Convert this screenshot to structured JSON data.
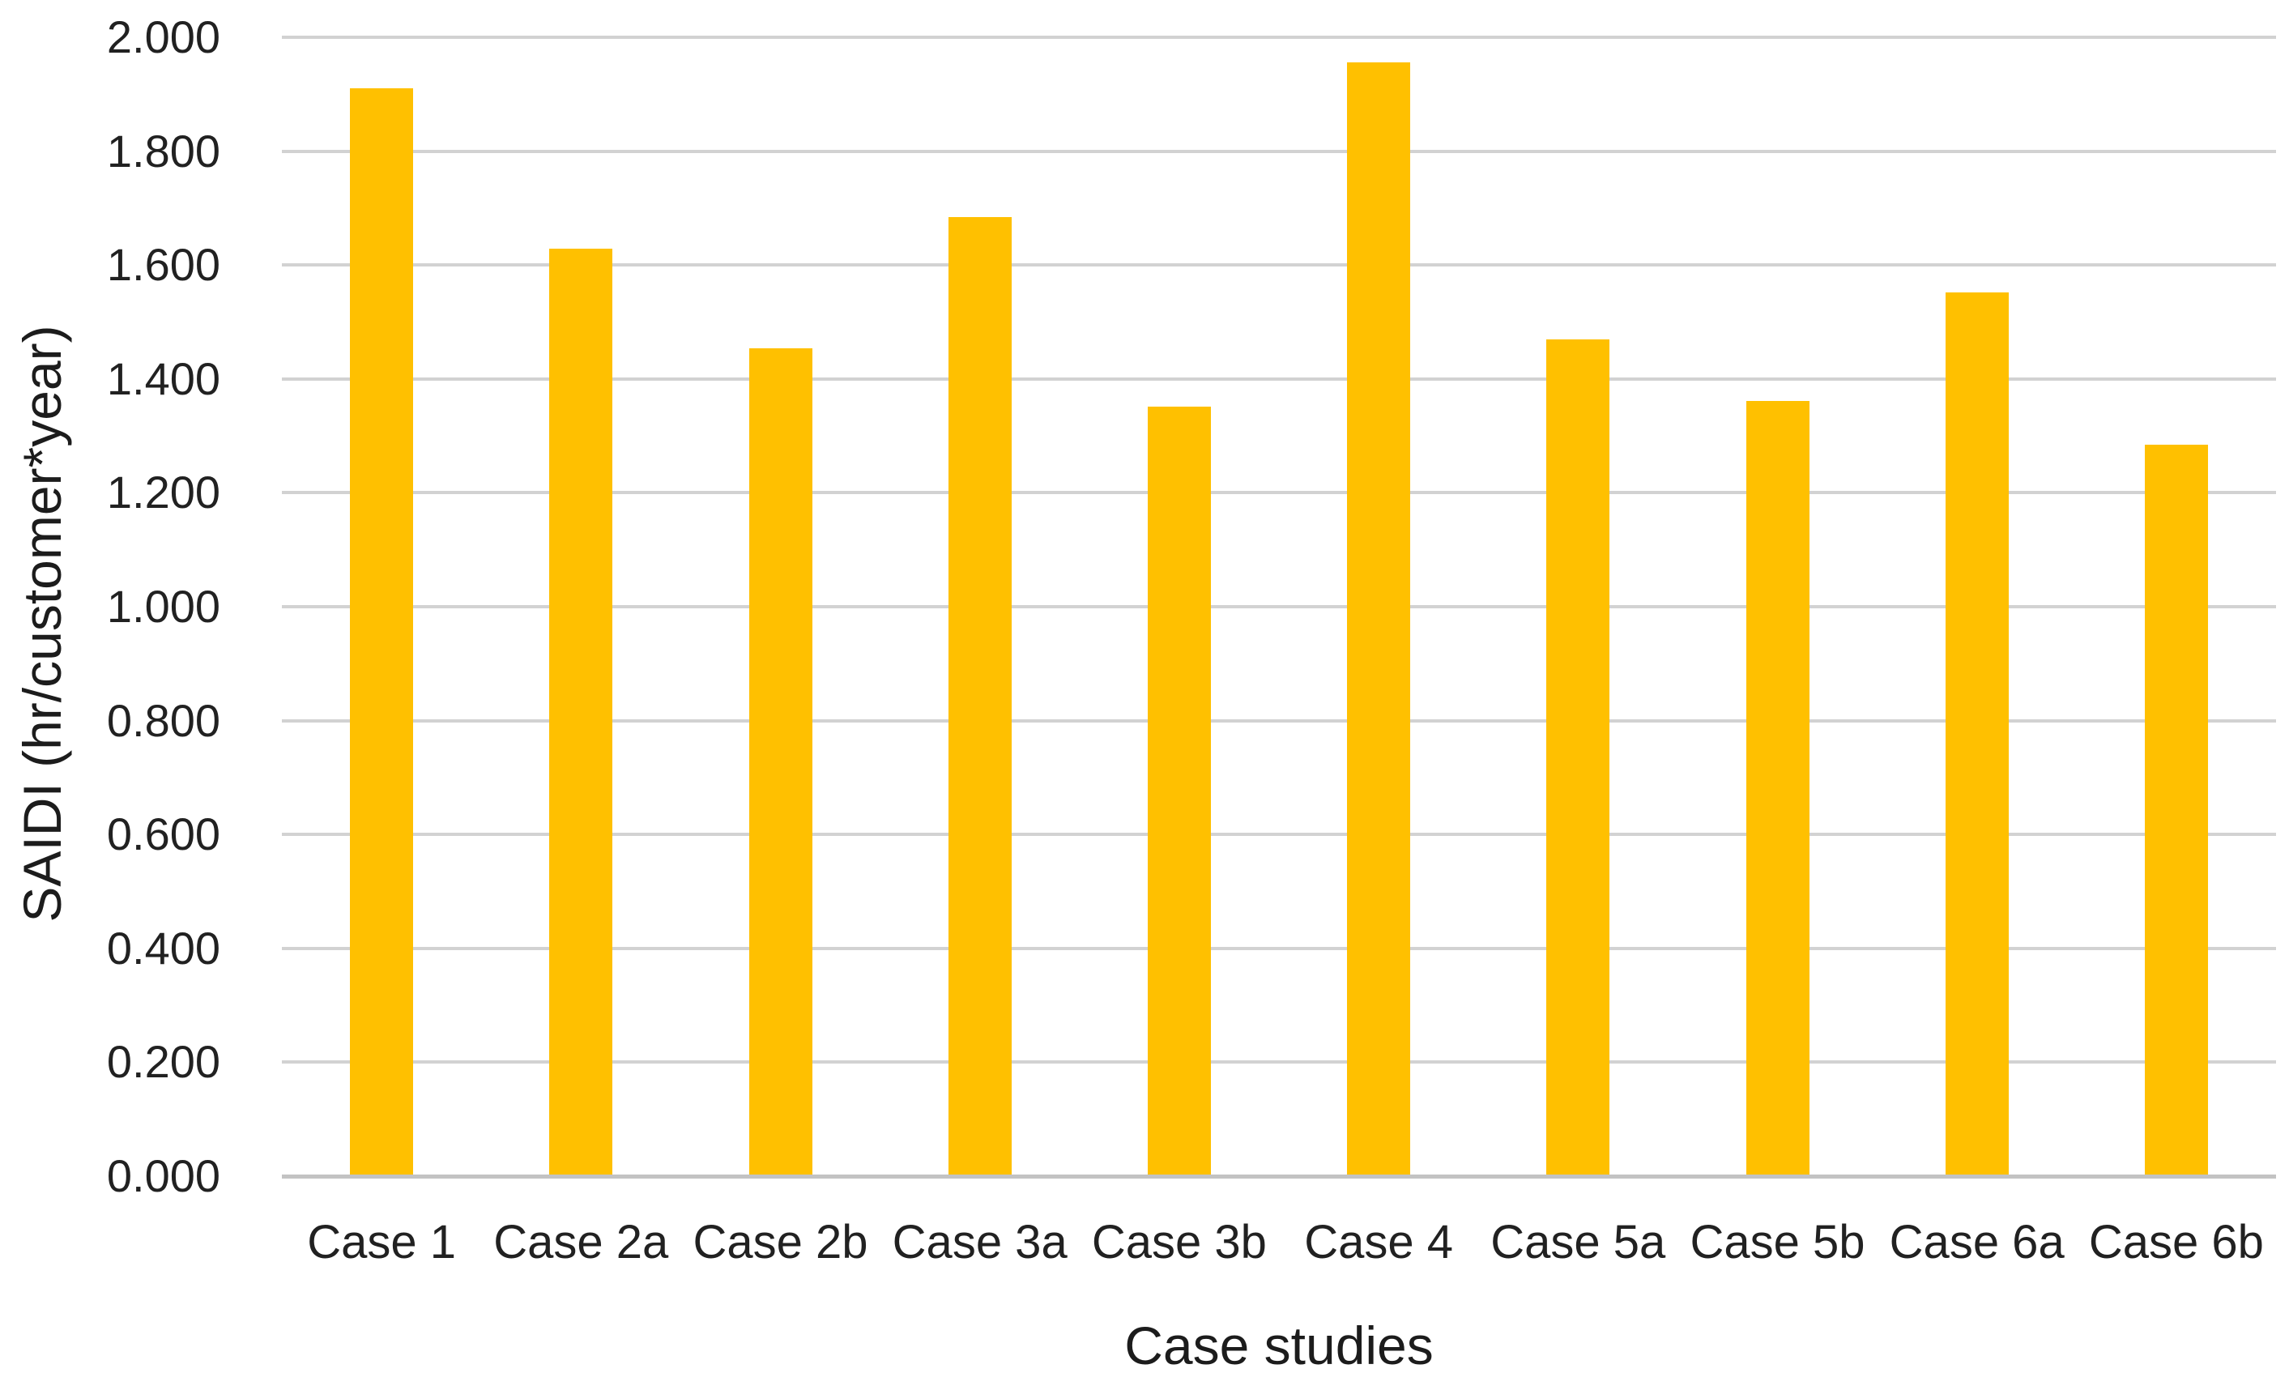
{
  "chart_data": {
    "type": "bar",
    "title": "",
    "xlabel": "Case studies",
    "ylabel": "SAIDI (hr/customer*year)",
    "categories": [
      "Case 1",
      "Case 2a",
      "Case 2b",
      "Case 3a",
      "Case 3b",
      "Case 4",
      "Case 5a",
      "Case 5b",
      "Case 6a",
      "Case 6b"
    ],
    "values": [
      1.911,
      1.629,
      1.454,
      1.684,
      1.351,
      1.956,
      1.469,
      1.362,
      1.552,
      1.284
    ],
    "ylim": [
      0,
      2
    ],
    "ytick_step": 0.2,
    "ytick_labels": [
      "0.000",
      "0.200",
      "0.400",
      "0.600",
      "0.800",
      "1.000",
      "1.200",
      "1.400",
      "1.600",
      "1.800",
      "2.000"
    ],
    "grid": "horizontal-gridlines-on",
    "legend": "none",
    "colors": {
      "bar_fill": "#FFC000",
      "gridline": "#D2D2D2",
      "axis_line": "#C3C3C3",
      "text": "#212121"
    }
  }
}
